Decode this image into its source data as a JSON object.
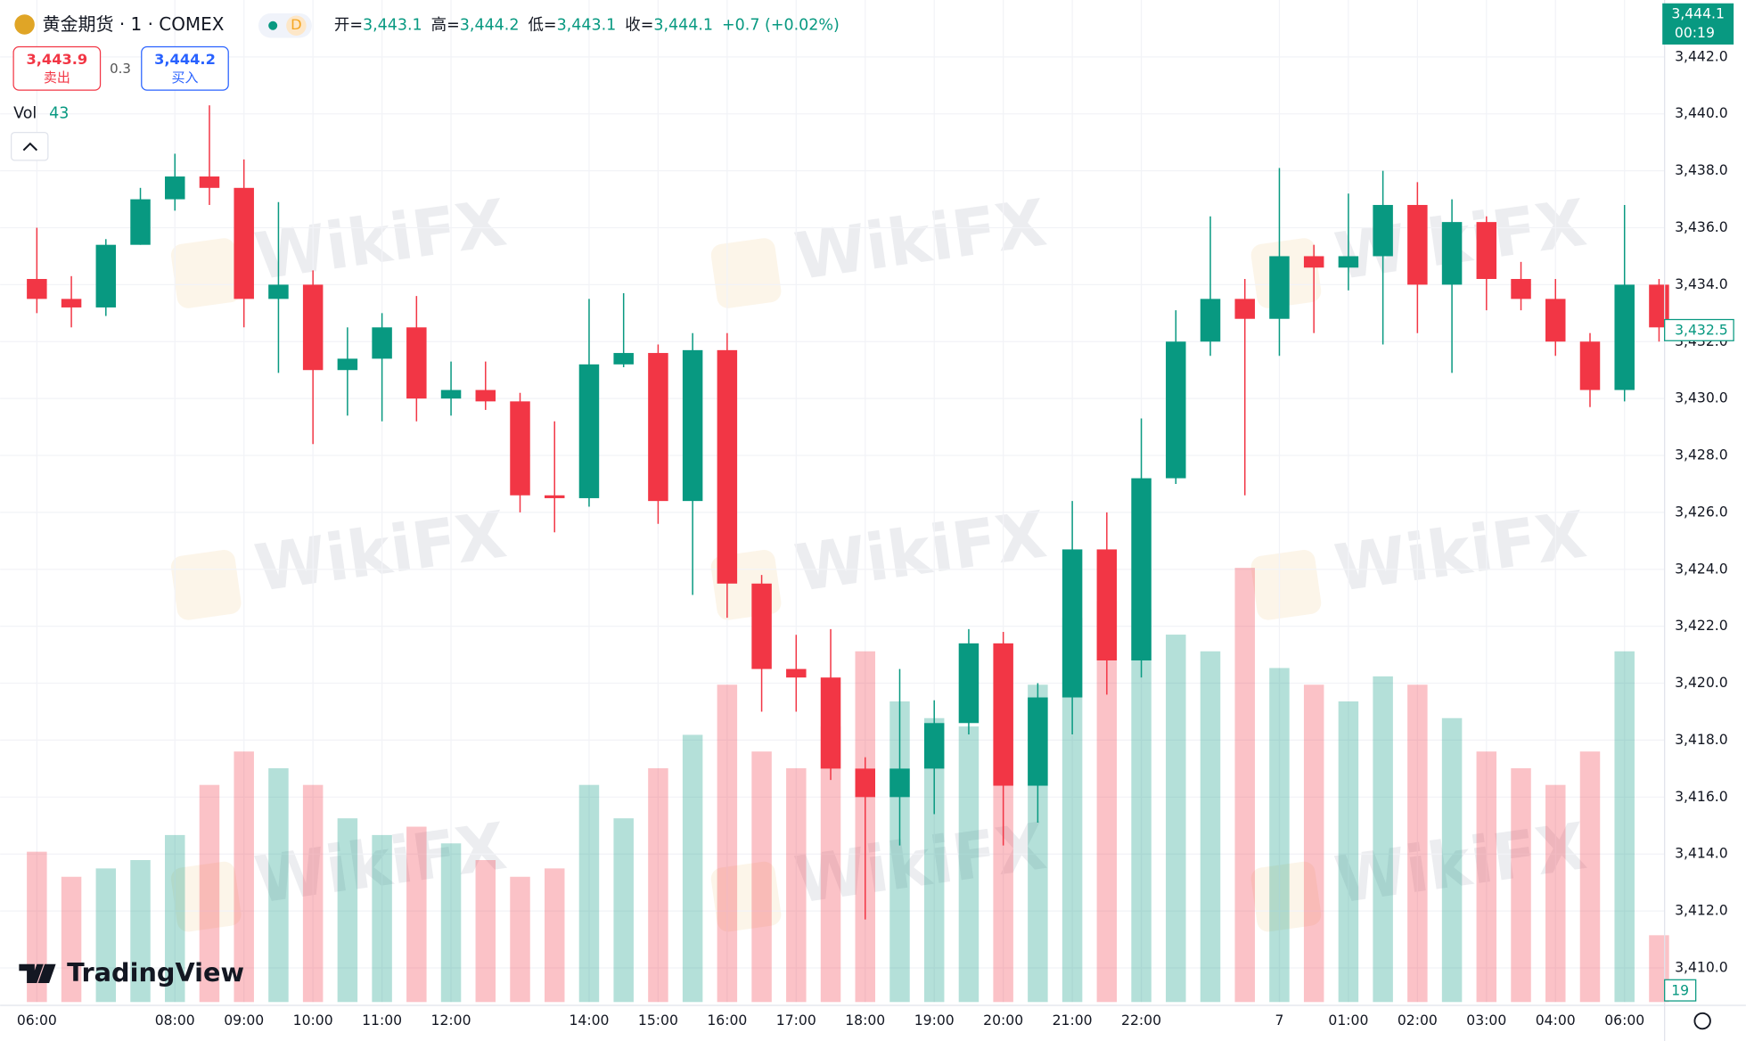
{
  "header": {
    "symbol": "黄金期货 · 1 · COMEX",
    "interval": "D",
    "open_label": "开=",
    "open": "3,443.1",
    "high_label": "高=",
    "high": "3,444.2",
    "low_label": "低=",
    "low": "3,443.1",
    "close_label": "收=",
    "close": "3,444.1",
    "change": "+0.7 (+0.02%)",
    "sell_price": "3,443.9",
    "sell_label": "卖出",
    "spread": "0.3",
    "buy_price": "3,444.2",
    "buy_label": "买入",
    "vol_label": "Vol",
    "vol_value": "43"
  },
  "price_tag": {
    "price": "3,444.1",
    "countdown": "00:19"
  },
  "last_price_label": "3,432.5",
  "volume_scale_label": "19",
  "brand": "TradingView",
  "watermark": "WikiFX",
  "chart_data": {
    "type": "candlestick",
    "up_color": "#089981",
    "down_color": "#f23645",
    "grid": true,
    "categories": [
      "06:00",
      null,
      null,
      null,
      "08:00",
      null,
      "09:00",
      null,
      "10:00",
      null,
      "11:00",
      null,
      "12:00",
      null,
      null,
      null,
      "14:00",
      null,
      "15:00",
      null,
      "16:00",
      null,
      "17:00",
      null,
      "18:00",
      null,
      "19:00",
      null,
      "20:00",
      null,
      "21:00",
      null,
      "22:00",
      null,
      null,
      null,
      "7",
      null,
      "01:00",
      null,
      "02:00",
      null,
      "03:00",
      null,
      "04:00",
      null,
      "06:00",
      null
    ],
    "open": [
      3434.2,
      3433.5,
      3433.2,
      3435.4,
      3437.0,
      3437.8,
      3437.4,
      3433.5,
      3434.0,
      3431.0,
      3431.4,
      3432.5,
      3430.0,
      3430.3,
      3429.9,
      3426.6,
      3426.5,
      3431.2,
      3431.6,
      3426.4,
      3431.7,
      3423.5,
      3420.5,
      3420.2,
      3417.0,
      3416.0,
      3417.0,
      3418.6,
      3421.4,
      3416.4,
      3419.5,
      3424.7,
      3420.8,
      3427.2,
      3432.0,
      3433.5,
      3432.8,
      3435.0,
      3434.6,
      3435.0,
      3436.8,
      3434.0,
      3436.2,
      3434.2,
      3433.5,
      3432.0,
      3430.3,
      3434.0
    ],
    "high": [
      3436.0,
      3434.3,
      3435.6,
      3437.4,
      3438.6,
      3440.3,
      3438.4,
      3436.9,
      3434.5,
      3432.5,
      3433.0,
      3433.6,
      3431.3,
      3431.3,
      3430.2,
      3429.2,
      3433.5,
      3433.7,
      3431.9,
      3432.3,
      3432.3,
      3423.8,
      3421.7,
      3421.9,
      3417.4,
      3420.5,
      3419.4,
      3421.9,
      3421.8,
      3420.0,
      3426.4,
      3426.0,
      3429.3,
      3433.1,
      3436.4,
      3434.2,
      3438.1,
      3435.4,
      3437.2,
      3438.0,
      3437.6,
      3437.0,
      3436.4,
      3434.8,
      3434.2,
      3432.3,
      3436.8,
      3434.2
    ],
    "low": [
      3433.0,
      3432.5,
      3432.9,
      3435.4,
      3436.6,
      3436.8,
      3432.5,
      3430.9,
      3428.4,
      3429.4,
      3429.2,
      3429.2,
      3429.4,
      3429.6,
      3426.0,
      3425.3,
      3426.2,
      3431.1,
      3425.6,
      3423.1,
      3422.3,
      3419.0,
      3419.0,
      3416.6,
      3411.7,
      3414.3,
      3415.4,
      3418.2,
      3414.3,
      3415.1,
      3418.2,
      3419.6,
      3420.2,
      3427.0,
      3431.5,
      3426.6,
      3431.5,
      3432.3,
      3433.8,
      3431.9,
      3432.3,
      3430.9,
      3433.1,
      3433.1,
      3431.5,
      3429.7,
      3429.9,
      3432.0
    ],
    "close": [
      3433.5,
      3433.2,
      3435.4,
      3437.0,
      3437.8,
      3437.4,
      3433.5,
      3434.0,
      3431.0,
      3431.4,
      3432.5,
      3430.0,
      3430.3,
      3429.9,
      3426.6,
      3426.5,
      3431.2,
      3431.6,
      3426.4,
      3431.7,
      3423.5,
      3420.5,
      3420.2,
      3417.0,
      3416.0,
      3417.0,
      3418.6,
      3421.4,
      3416.4,
      3419.5,
      3424.7,
      3420.8,
      3427.2,
      3432.0,
      3433.5,
      3432.8,
      3435.0,
      3434.6,
      3435.0,
      3436.8,
      3434.0,
      3436.2,
      3434.2,
      3433.5,
      3432.0,
      3430.3,
      3434.0,
      3432.5
    ],
    "volume": [
      180,
      150,
      160,
      170,
      200,
      260,
      300,
      280,
      260,
      220,
      200,
      210,
      190,
      170,
      150,
      160,
      260,
      220,
      280,
      320,
      380,
      300,
      280,
      330,
      420,
      360,
      340,
      330,
      350,
      380,
      460,
      480,
      470,
      440,
      420,
      520,
      400,
      380,
      360,
      390,
      380,
      340,
      300,
      280,
      260,
      300,
      420,
      80
    ],
    "volume_lim": [
      0,
      1200
    ],
    "ylim": [
      3408.8,
      3444.0
    ],
    "yticks": [
      {
        "value": 3410,
        "label": "3,410.0"
      },
      {
        "value": 3412,
        "label": "3,412.0"
      },
      {
        "value": 3414,
        "label": "3,414.0"
      },
      {
        "value": 3416,
        "label": "3,416.0"
      },
      {
        "value": 3418,
        "label": "3,418.0"
      },
      {
        "value": 3420,
        "label": "3,420.0"
      },
      {
        "value": 3422,
        "label": "3,422.0"
      },
      {
        "value": 3424,
        "label": "3,424.0"
      },
      {
        "value": 3426,
        "label": "3,426.0"
      },
      {
        "value": 3428,
        "label": "3,428.0"
      },
      {
        "value": 3430,
        "label": "3,430.0"
      },
      {
        "value": 3432,
        "label": "3,432.0"
      },
      {
        "value": 3434,
        "label": "3,434.0"
      },
      {
        "value": 3436,
        "label": "3,436.0"
      },
      {
        "value": 3438,
        "label": "3,438.0"
      },
      {
        "value": 3440,
        "label": "3,440.0"
      },
      {
        "value": 3442,
        "label": "3,442.0"
      }
    ]
  }
}
